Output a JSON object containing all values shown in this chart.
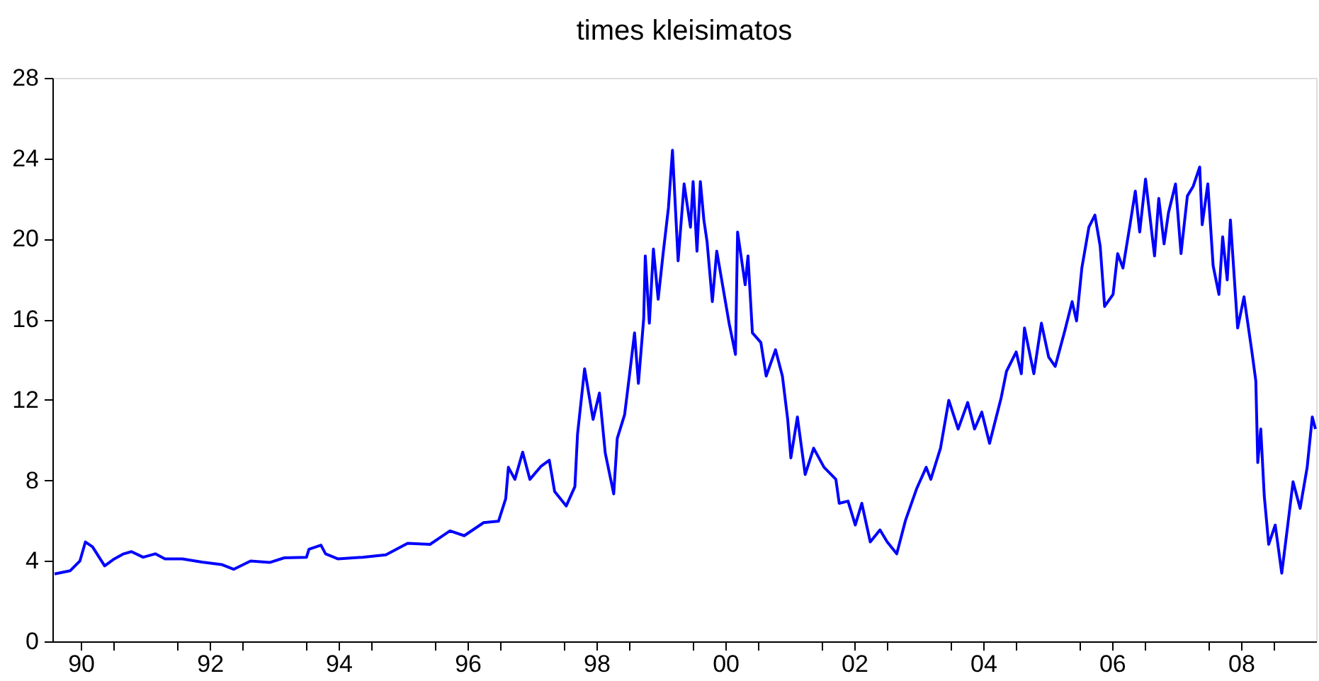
{
  "chart_data": {
    "type": "line",
    "title": "times kleisimatos",
    "xlim": [
      "1990-01-22",
      "2009-09-01"
    ],
    "xticks": [
      {
        "value": "1990-07-02",
        "label": "90"
      },
      {
        "value": "1991-01-01",
        "label": null
      },
      {
        "value": "1992-01-01",
        "label": null
      },
      {
        "value": "1992-07-02",
        "label": "92"
      },
      {
        "value": "1993-01-01",
        "label": null
      },
      {
        "value": "1994-01-01",
        "label": null
      },
      {
        "value": "1994-07-02",
        "label": "94"
      },
      {
        "value": "1995-01-01",
        "label": null
      },
      {
        "value": "1996-01-01",
        "label": null
      },
      {
        "value": "1996-07-02",
        "label": "96"
      },
      {
        "value": "1997-01-01",
        "label": null
      },
      {
        "value": "1998-01-01",
        "label": null
      },
      {
        "value": "1998-07-02",
        "label": "98"
      },
      {
        "value": "1999-01-01",
        "label": null
      },
      {
        "value": "2000-01-01",
        "label": null
      },
      {
        "value": "2000-07-02",
        "label": "00"
      },
      {
        "value": "2001-01-01",
        "label": null
      },
      {
        "value": "2002-01-01",
        "label": null
      },
      {
        "value": "2002-07-02",
        "label": "02"
      },
      {
        "value": "2003-01-01",
        "label": null
      },
      {
        "value": "2004-01-01",
        "label": null
      },
      {
        "value": "2004-07-02",
        "label": "04"
      },
      {
        "value": "2005-01-01",
        "label": null
      },
      {
        "value": "2006-01-01",
        "label": null
      },
      {
        "value": "2006-07-02",
        "label": "06"
      },
      {
        "value": "2007-01-01",
        "label": null
      },
      {
        "value": "2008-01-01",
        "label": null
      },
      {
        "value": "2008-07-02",
        "label": "08"
      },
      {
        "value": "2009-01-01",
        "label": null
      }
    ],
    "ylim": [
      0,
      28
    ],
    "yticks": [
      0,
      4,
      8,
      12,
      16,
      20,
      24,
      28
    ],
    "grid": false,
    "marker": "none",
    "line_style": "solid",
    "series": [
      {
        "color": "#0000ff",
        "x": [
          "1990-02-03",
          "1990-05-03",
          "1990-06-27",
          "1990-07-28",
          "1990-09-06",
          "1990-11-14",
          "1991-01-08",
          "1991-03-02",
          "1991-04-15",
          "1991-06-20",
          "1991-08-28",
          "1991-10-22",
          "1992-01-28",
          "1992-05-18",
          "1992-09-06",
          "1992-11-14",
          "1993-02-18",
          "1993-06-06",
          "1993-08-28",
          "1994-01-01",
          "1994-01-15",
          "1994-03-24",
          "1994-04-19",
          "1994-06-27",
          "1994-11-14",
          "1995-03-27",
          "1995-07-28",
          "1995-12-02",
          "1996-03-24",
          "1996-06-13",
          "1996-10-01",
          "1996-12-24",
          "1997-02-03",
          "1997-02-18",
          "1997-03-27",
          "1997-05-10",
          "1997-06-20",
          "1997-08-21",
          "1997-10-08",
          "1997-11-07",
          "1998-01-12",
          "1998-03-02",
          "1998-03-17",
          "1998-04-26",
          "1998-06-13",
          "1998-07-19",
          "1998-08-21",
          "1998-10-08",
          "1998-10-28",
          "1998-12-09",
          "1999-01-08",
          "1999-02-03",
          "1999-02-25",
          "1999-03-27",
          "1999-04-05",
          "1999-04-28",
          "1999-05-21",
          "1999-06-17",
          "1999-07-15",
          "1999-08-14",
          "1999-09-06",
          "1999-10-08",
          "1999-11-11",
          "1999-12-17",
          "2000-01-01",
          "2000-01-23",
          "2000-02-11",
          "2000-03-02",
          "2000-03-20",
          "2000-04-19",
          "2000-05-14",
          "2000-07-23",
          "2000-08-28",
          "2000-09-09",
          "2000-10-22",
          "2000-11-07",
          "2000-12-02",
          "2001-01-19",
          "2001-02-18",
          "2001-04-12",
          "2001-05-21",
          "2001-06-20",
          "2001-07-08",
          "2001-08-14",
          "2001-09-27",
          "2001-11-14",
          "2002-01-12",
          "2002-03-20",
          "2002-04-08",
          "2002-05-28",
          "2002-07-08",
          "2002-08-14",
          "2002-10-01",
          "2002-11-25",
          "2003-01-05",
          "2003-02-28",
          "2003-04-19",
          "2003-06-20",
          "2003-08-14",
          "2003-09-09",
          "2003-11-03",
          "2003-12-20",
          "2004-02-11",
          "2004-04-05",
          "2004-05-14",
          "2004-06-24",
          "2004-08-07",
          "2004-10-12",
          "2004-11-11",
          "2005-01-05",
          "2005-02-03",
          "2005-02-21",
          "2005-04-15",
          "2005-05-28",
          "2005-07-08",
          "2005-08-14",
          "2005-10-08",
          "2005-11-18",
          "2005-12-13",
          "2006-01-12",
          "2006-02-21",
          "2006-03-27",
          "2006-04-26",
          "2006-05-21",
          "2006-07-08",
          "2006-08-03",
          "2006-09-02",
          "2006-10-12",
          "2006-11-11",
          "2006-12-06",
          "2007-01-08",
          "2007-02-28",
          "2007-03-24",
          "2007-04-23",
          "2007-05-18",
          "2007-06-27",
          "2007-07-28",
          "2007-09-02",
          "2007-10-05",
          "2007-11-11",
          "2007-11-25",
          "2007-12-27",
          "2008-01-26",
          "2008-02-28",
          "2008-03-20",
          "2008-04-15",
          "2008-05-03",
          "2008-06-13",
          "2008-07-19",
          "2008-09-02",
          "2008-09-24",
          "2008-10-05",
          "2008-10-22",
          "2008-11-11",
          "2008-12-06",
          "2009-01-12",
          "2009-02-18",
          "2009-03-24",
          "2009-04-23",
          "2009-06-02",
          "2009-07-12",
          "2009-08-10",
          "2009-08-28"
        ],
        "values": [
          3.35,
          3.51,
          4.0,
          4.94,
          4.7,
          3.75,
          4.1,
          4.35,
          4.46,
          4.18,
          4.35,
          4.1,
          4.1,
          3.94,
          3.82,
          3.58,
          3.99,
          3.92,
          4.15,
          4.18,
          4.58,
          4.78,
          4.35,
          4.1,
          4.18,
          4.3,
          4.87,
          4.82,
          5.49,
          5.25,
          5.9,
          5.97,
          7.09,
          8.65,
          8.05,
          9.4,
          8.05,
          8.69,
          9.0,
          7.45,
          6.73,
          7.69,
          10.3,
          13.54,
          11.03,
          12.34,
          9.36,
          7.33,
          10.08,
          11.27,
          13.42,
          15.33,
          12.82,
          16.05,
          19.15,
          15.81,
          19.5,
          17.0,
          19.27,
          21.54,
          24.4,
          18.91,
          22.73,
          20.58,
          22.85,
          19.39,
          22.85,
          20.94,
          19.86,
          16.88,
          19.39,
          15.81,
          14.26,
          20.34,
          17.72,
          19.15,
          15.33,
          14.85,
          13.18,
          14.49,
          13.18,
          11.03,
          9.12,
          11.15,
          8.29,
          9.6,
          8.65,
          8.05,
          6.86,
          6.97,
          5.78,
          6.86,
          4.94,
          5.54,
          4.94,
          4.35,
          6.02,
          7.57,
          8.65,
          8.05,
          9.6,
          11.98,
          10.55,
          11.87,
          10.55,
          11.39,
          9.84,
          12.11,
          13.42,
          14.38,
          13.3,
          15.57,
          13.3,
          15.81,
          14.13,
          13.66,
          15.45,
          16.88,
          15.92,
          18.55,
          20.58,
          21.18,
          19.63,
          16.64,
          17.24,
          19.27,
          18.55,
          20.7,
          22.37,
          20.34,
          22.97,
          19.15,
          22.01,
          19.75,
          21.3,
          22.73,
          19.27,
          22.13,
          22.61,
          23.57,
          20.7,
          22.73,
          18.67,
          17.24,
          20.1,
          17.96,
          20.94,
          15.57,
          17.12,
          14.38,
          12.94,
          8.88,
          10.55,
          7.21,
          4.82,
          5.78,
          3.39,
          5.78,
          7.93,
          6.61,
          8.65,
          11.15,
          10.55
        ]
      }
    ]
  }
}
